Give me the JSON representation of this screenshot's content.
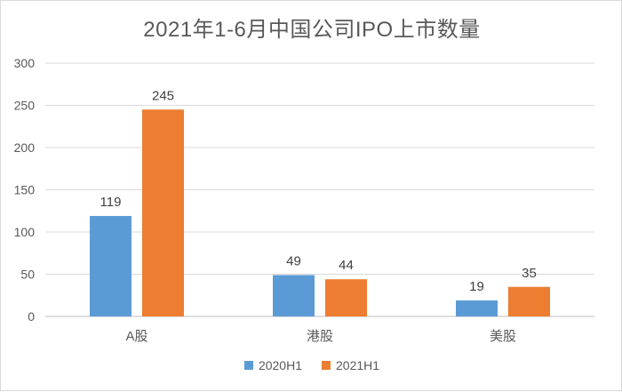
{
  "chart_data": {
    "type": "bar",
    "title": "2021年1-6月中国公司IPO上市数量",
    "categories": [
      "A股",
      "港股",
      "美股"
    ],
    "series": [
      {
        "name": "2020H1",
        "values": [
          119,
          49,
          19
        ],
        "color": "#5b9bd5"
      },
      {
        "name": "2021H1",
        "values": [
          245,
          44,
          35
        ],
        "color": "#ed7d31"
      }
    ],
    "ylim": [
      0,
      300
    ],
    "yticks": [
      0,
      50,
      100,
      150,
      200,
      250,
      300
    ],
    "grid": true,
    "legend_position": "bottom",
    "data_labels": true
  }
}
